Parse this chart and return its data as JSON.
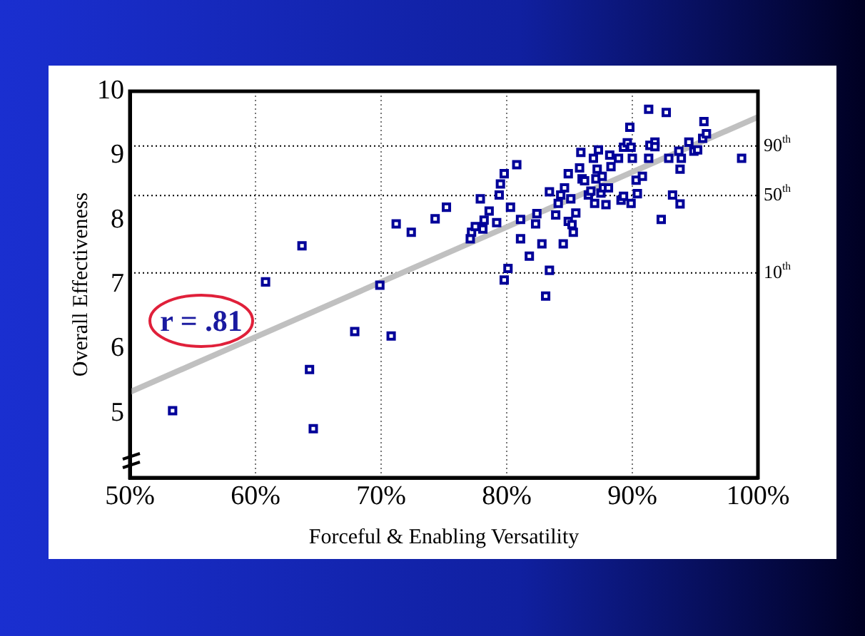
{
  "chart_data": {
    "type": "scatter",
    "xlabel": "Forceful & Enabling Versatility",
    "ylabel": "Overall Effectiveness",
    "xlim": [
      50,
      100
    ],
    "xticks": [
      {
        "value": 50,
        "label": "50%"
      },
      {
        "value": 60,
        "label": "60%"
      },
      {
        "value": 70,
        "label": "70%"
      },
      {
        "value": 80,
        "label": "80%"
      },
      {
        "value": 90,
        "label": "90%"
      },
      {
        "value": 100,
        "label": "100%"
      }
    ],
    "ylim": [
      4,
      10
    ],
    "yticks": [
      5,
      6,
      7,
      8,
      9,
      10
    ],
    "grid": "x",
    "marker": "square",
    "series": [
      {
        "color": "#000099",
        "x": [
          53.4,
          60.8,
          63.7,
          64.3,
          64.6,
          67.9,
          69.9,
          70.8,
          71.2,
          72.4,
          74.3,
          75.2,
          77.9,
          78.6,
          77.1,
          77.2,
          77.5,
          78.1,
          78.2,
          79.2,
          79.4,
          79.5,
          79.8,
          80.3,
          80.8,
          81.1,
          81.1,
          81.8,
          80.1,
          79.8,
          82.3,
          82.4,
          82.8,
          83.4,
          83.4,
          83.1,
          83.9,
          84.1,
          84.5,
          84.3,
          84.6,
          84.9,
          85.1,
          84.9,
          85.2,
          85.3,
          85.5,
          85.8,
          85.9,
          86.0,
          86.2,
          86.5,
          86.7,
          86.9,
          87.0,
          87.1,
          87.3,
          87.2,
          87.5,
          87.6,
          87.7,
          87.9,
          88.1,
          88.2,
          88.3,
          88.9,
          89.1,
          89.3,
          89.3,
          89.6,
          89.8,
          89.9,
          89.9,
          90.0,
          90.3,
          90.4,
          90.8,
          91.3,
          91.3,
          91.4,
          91.8,
          91.8,
          92.3,
          92.7,
          92.9,
          93.2,
          93.7,
          93.8,
          93.8,
          93.9,
          94.5,
          94.9,
          95.2,
          95.6,
          95.9,
          95.7,
          98.7
        ],
        "values": [
          5.04,
          7.04,
          7.6,
          5.68,
          4.76,
          6.27,
          6.99,
          6.2,
          7.94,
          7.81,
          8.02,
          8.2,
          8.33,
          8.14,
          7.71,
          7.81,
          7.9,
          7.86,
          8.0,
          7.96,
          8.39,
          8.56,
          8.72,
          8.2,
          8.86,
          8.01,
          7.71,
          7.44,
          7.25,
          7.07,
          7.94,
          8.1,
          7.63,
          8.44,
          7.22,
          6.82,
          8.08,
          8.26,
          7.63,
          8.39,
          8.5,
          8.72,
          8.33,
          7.98,
          7.93,
          7.81,
          8.11,
          8.81,
          9.05,
          8.64,
          8.61,
          8.39,
          8.45,
          8.96,
          8.26,
          8.64,
          9.09,
          8.79,
          8.42,
          8.68,
          8.5,
          8.24,
          8.5,
          9.01,
          8.83,
          8.96,
          8.31,
          8.37,
          9.13,
          9.2,
          9.44,
          8.26,
          9.13,
          8.96,
          8.62,
          8.41,
          8.68,
          9.72,
          8.96,
          9.16,
          9.21,
          9.14,
          8.01,
          9.67,
          8.96,
          8.39,
          9.07,
          8.79,
          8.25,
          8.96,
          9.21,
          9.07,
          9.09,
          9.27,
          9.34,
          9.53,
          8.96
        ]
      },
      {
        "type": "line",
        "color": "#c0c0c0",
        "marker": "none",
        "x": [
          50,
          100
        ],
        "values": [
          5.33,
          9.6
        ]
      }
    ],
    "ref_lines": [
      {
        "axis": "y",
        "value": 9.15,
        "label": "90$^{th}$",
        "line_style": "dotted"
      },
      {
        "axis": "y",
        "value": 8.38,
        "label": "50$^{th}$",
        "line_style": "dotted"
      },
      {
        "axis": "y",
        "value": 7.18,
        "label": "10$^{th}$",
        "line_style": "dotted"
      }
    ],
    "annotations": [
      "r = .81"
    ]
  }
}
